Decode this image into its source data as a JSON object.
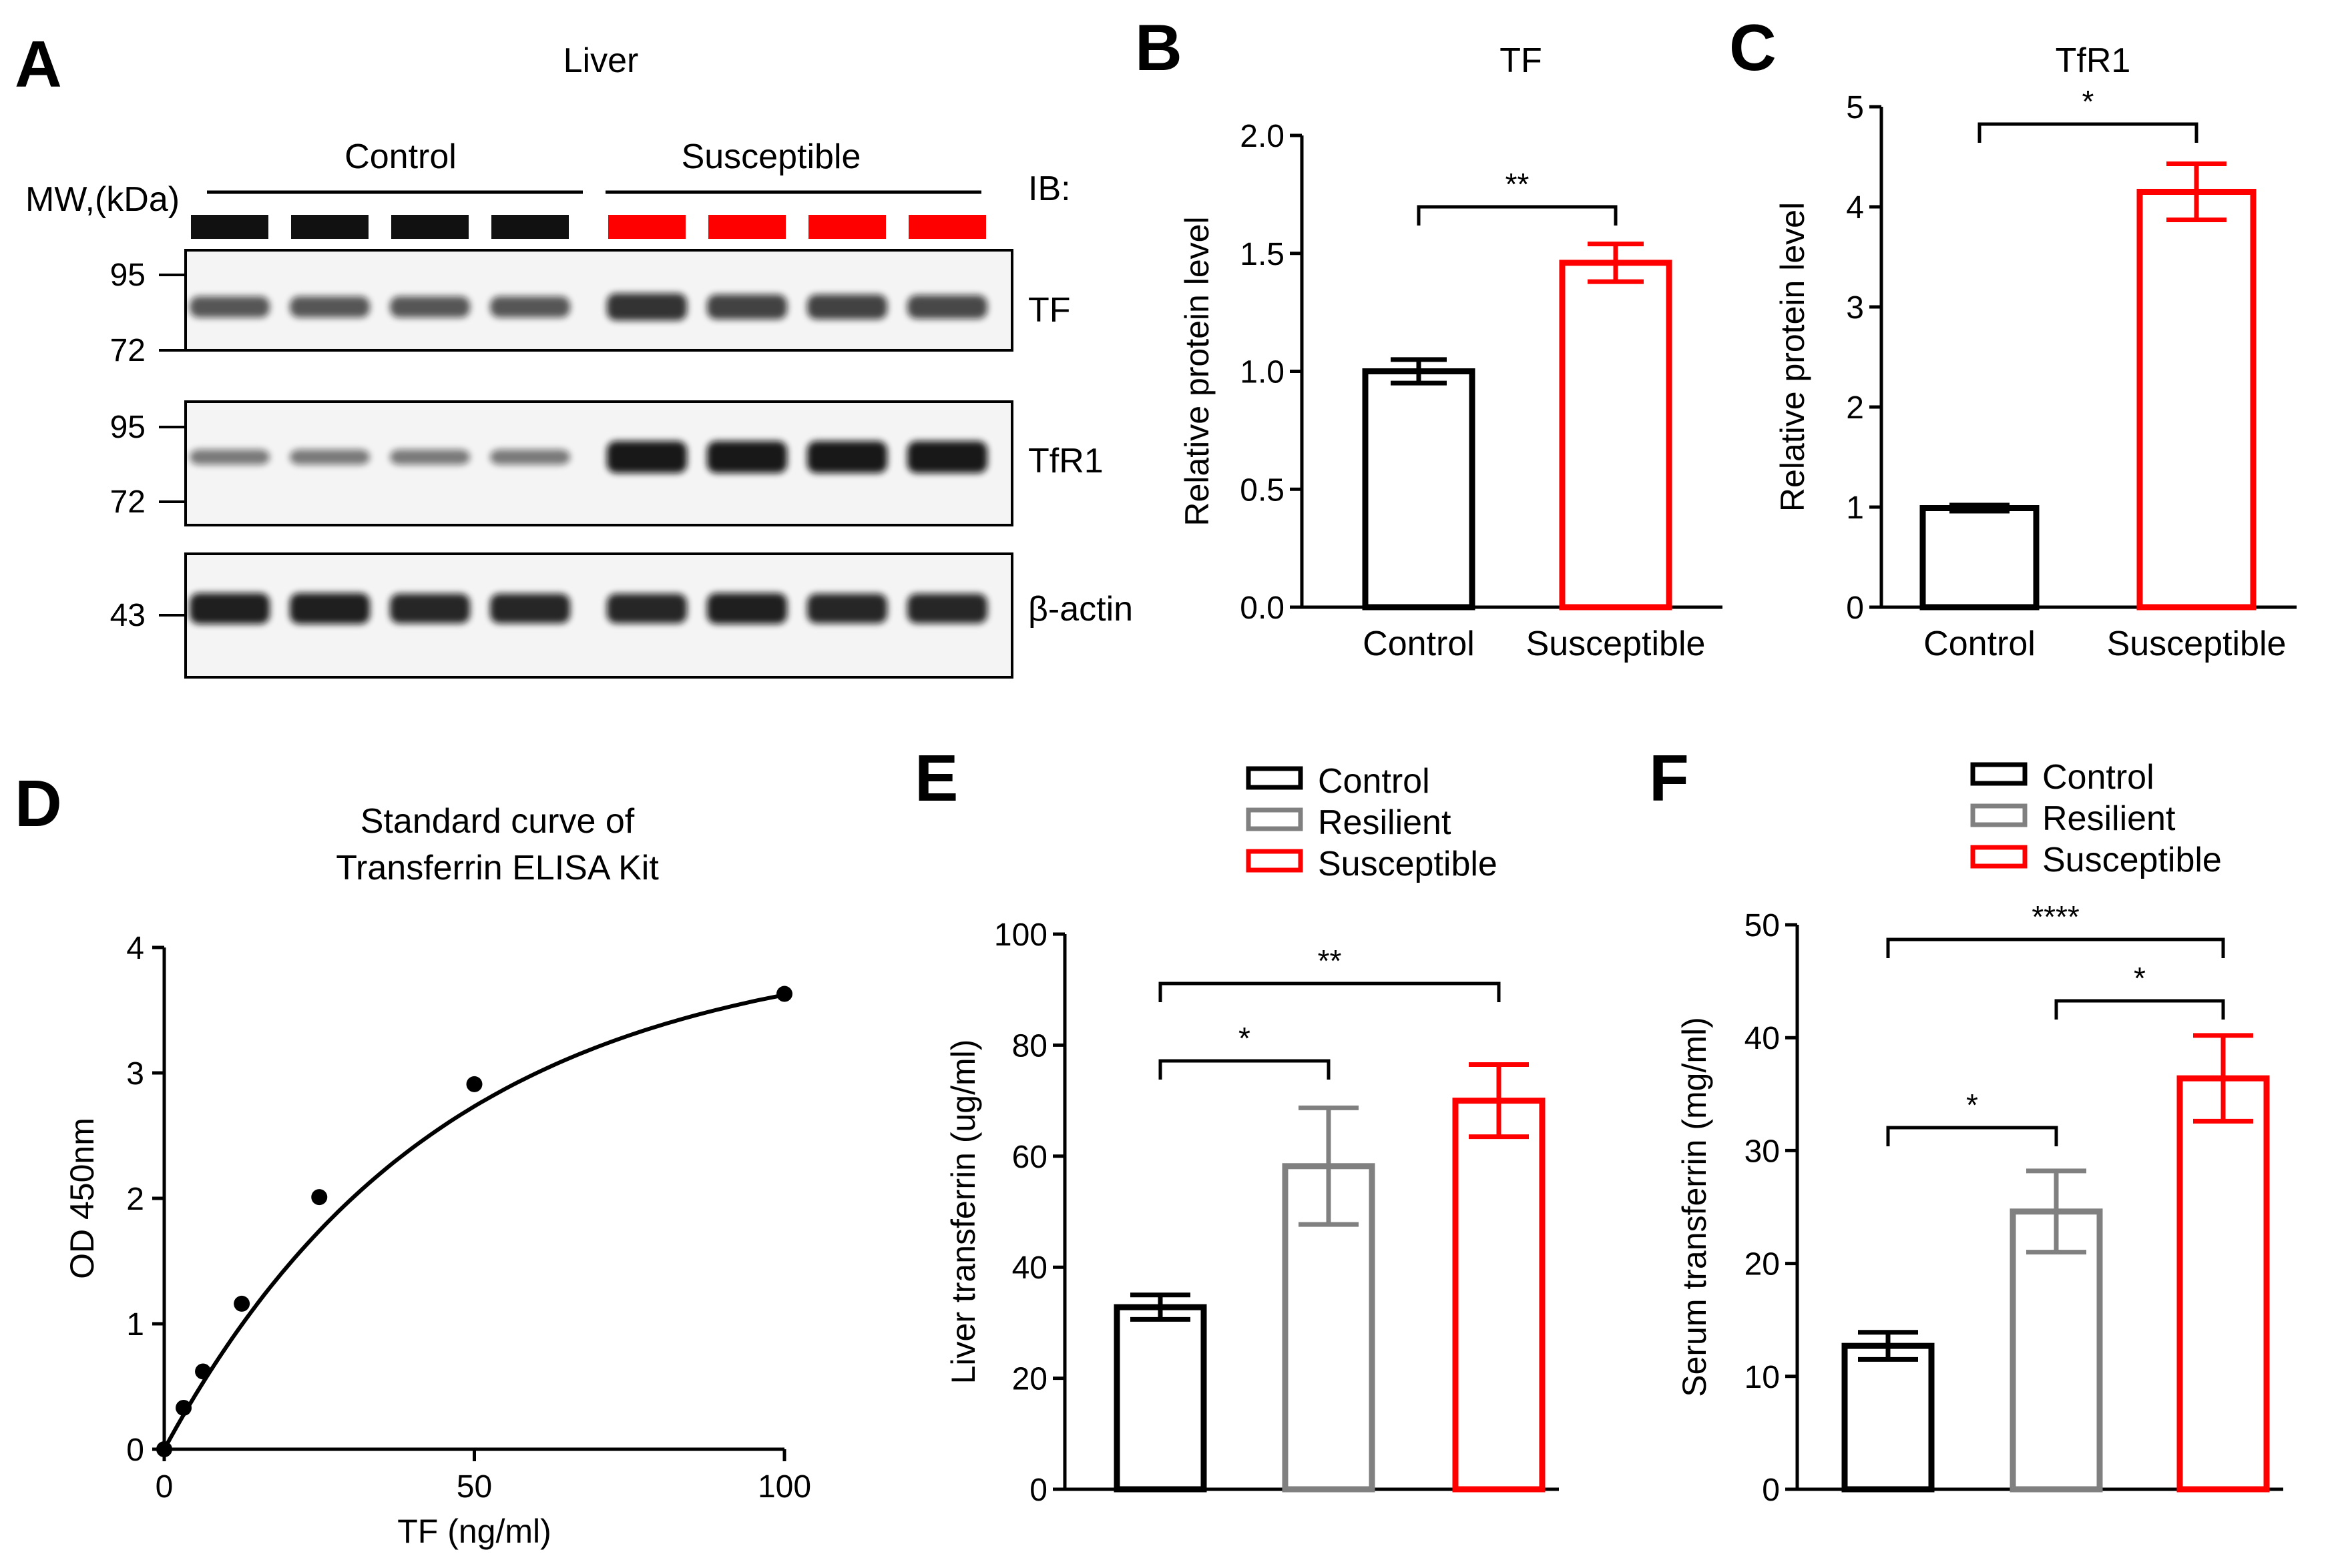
{
  "colors": {
    "control": "#000000",
    "resilient": "#808080",
    "susceptible": "#ff0000",
    "band": "#111111"
  },
  "panelA": {
    "letter": "A",
    "title": "Liver",
    "groups": [
      "Control",
      "Susceptible"
    ],
    "mw_label": "MW,(kDa)",
    "ib_label": "IB:",
    "blots": [
      {
        "name": "TF",
        "markers": [
          "95",
          "72"
        ],
        "band_strength": [
          0.55,
          0.55,
          0.55,
          0.55,
          0.8,
          0.7,
          0.7,
          0.65
        ]
      },
      {
        "name": "TfR1",
        "markers": [
          "95",
          "72"
        ],
        "band_strength": [
          0.3,
          0.3,
          0.3,
          0.3,
          1,
          1,
          1,
          1
        ]
      },
      {
        "name": "β-actin",
        "markers": [
          "43"
        ],
        "band_strength": [
          0.95,
          0.95,
          0.9,
          0.9,
          0.9,
          0.95,
          0.9,
          0.9
        ]
      }
    ]
  },
  "chart_data": [
    {
      "panel": "B",
      "type": "bar",
      "title": "TF",
      "ylabel": "Relative protein level",
      "xlabel": "",
      "categories": [
        "Control",
        "Susceptible"
      ],
      "values": [
        1.0,
        1.46
      ],
      "errors": [
        0.05,
        0.08
      ],
      "ylim": [
        0,
        2.0
      ],
      "yticks": [
        "0.0",
        "0.5",
        "1.0",
        "1.5",
        "2.0"
      ],
      "significance": [
        {
          "from": 0,
          "to": 1,
          "label": "**"
        }
      ]
    },
    {
      "panel": "C",
      "type": "bar",
      "title": "TfR1",
      "ylabel": "Relative protein level",
      "xlabel": "",
      "categories": [
        "Control",
        "Susceptible"
      ],
      "values": [
        0.99,
        4.15
      ],
      "errors": [
        0.03,
        0.28
      ],
      "ylim": [
        0,
        5
      ],
      "yticks": [
        "0",
        "1",
        "2",
        "3",
        "4",
        "5"
      ],
      "significance": [
        {
          "from": 0,
          "to": 1,
          "label": "*"
        }
      ]
    },
    {
      "panel": "D",
      "type": "line",
      "title": "Standard curve of Transferrin ELISA Kit",
      "xlabel": "TF (ng/ml)",
      "ylabel": "OD 450nm",
      "x": [
        0,
        3.125,
        6.25,
        12.5,
        25,
        50,
        100
      ],
      "y": [
        0.0,
        0.33,
        0.62,
        1.16,
        2.01,
        2.91,
        3.63
      ],
      "xlim": [
        0,
        100
      ],
      "ylim": [
        0,
        4
      ],
      "xticks": [
        "0",
        "50",
        "100"
      ],
      "yticks": [
        "0",
        "1",
        "2",
        "3",
        "4"
      ]
    },
    {
      "panel": "E",
      "type": "bar",
      "title": "",
      "ylabel": "Liver transferrin (ug/ml)",
      "xlabel": "",
      "categories": [
        "Control",
        "Resilient",
        "Susceptible"
      ],
      "values": [
        32.8,
        58.2,
        70.0
      ],
      "errors": [
        2.2,
        10.5,
        6.5
      ],
      "ylim": [
        0,
        100
      ],
      "yticks": [
        "0",
        "20",
        "40",
        "60",
        "80",
        "100"
      ],
      "legend": [
        "Control",
        "Resilient",
        "Susceptible"
      ],
      "legend_position": "top",
      "significance": [
        {
          "from": 0,
          "to": 1,
          "label": "*"
        },
        {
          "from": 0,
          "to": 2,
          "label": "**"
        }
      ]
    },
    {
      "panel": "F",
      "type": "bar",
      "title": "",
      "ylabel": "Serum transferrin (mg/ml)",
      "xlabel": "",
      "categories": [
        "Control",
        "Resilient",
        "Susceptible"
      ],
      "values": [
        12.7,
        24.6,
        36.4
      ],
      "errors": [
        1.2,
        3.6,
        3.8
      ],
      "ylim": [
        0,
        50
      ],
      "yticks": [
        "0",
        "10",
        "20",
        "30",
        "40",
        "50"
      ],
      "legend": [
        "Control",
        "Resilient",
        "Susceptible"
      ],
      "legend_position": "top",
      "significance": [
        {
          "from": 0,
          "to": 1,
          "label": "*"
        },
        {
          "from": 1,
          "to": 2,
          "label": "*"
        },
        {
          "from": 0,
          "to": 2,
          "label": "****"
        }
      ]
    }
  ]
}
